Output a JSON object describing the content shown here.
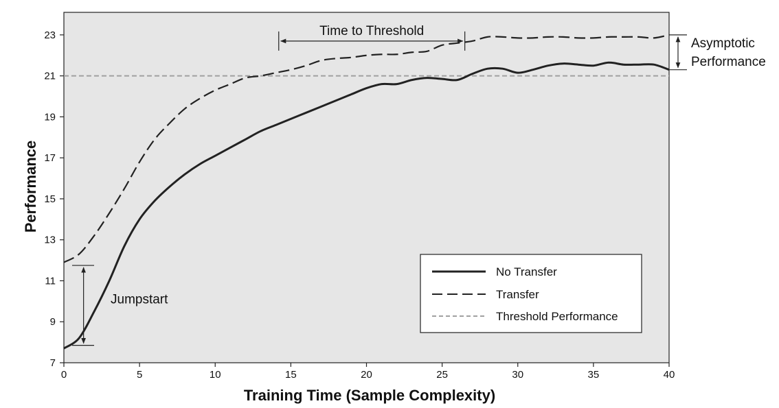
{
  "chart_data": {
    "type": "line",
    "title": "",
    "xlabel": "Training Time (Sample Complexity)",
    "ylabel": "Performance",
    "xlim": [
      0,
      40
    ],
    "ylim": [
      7,
      24.1
    ],
    "x_ticks": [
      0,
      5,
      10,
      15,
      20,
      25,
      30,
      35,
      40
    ],
    "y_ticks": [
      7,
      9,
      11,
      13,
      15,
      17,
      19,
      21,
      23
    ],
    "grid": false,
    "plot_background": "#e6e6e6",
    "legend_position": "bottom-right",
    "series": [
      {
        "name": "No Transfer",
        "style": "solid",
        "color": "#222222",
        "x": [
          0,
          1,
          2,
          3,
          4,
          5,
          6,
          7,
          8,
          9,
          10,
          11,
          12,
          13,
          14,
          15,
          16,
          17,
          18,
          19,
          20,
          21,
          22,
          23,
          24,
          25,
          26,
          27,
          28,
          29,
          30,
          31,
          32,
          33,
          34,
          35,
          36,
          37,
          38,
          39,
          40
        ],
        "y": [
          7.7,
          8.2,
          9.5,
          11.0,
          12.7,
          14.0,
          14.9,
          15.6,
          16.2,
          16.7,
          17.1,
          17.5,
          17.9,
          18.3,
          18.6,
          18.9,
          19.2,
          19.5,
          19.8,
          20.1,
          20.4,
          20.6,
          20.6,
          20.8,
          20.9,
          20.85,
          20.8,
          21.1,
          21.35,
          21.35,
          21.15,
          21.3,
          21.5,
          21.6,
          21.55,
          21.5,
          21.65,
          21.55,
          21.55,
          21.55,
          21.3
        ]
      },
      {
        "name": "Transfer",
        "style": "dashed",
        "color": "#222222",
        "x": [
          0,
          1,
          2,
          3,
          4,
          5,
          6,
          7,
          8,
          9,
          10,
          11,
          12,
          13,
          14,
          15,
          16,
          17,
          18,
          19,
          20,
          21,
          22,
          23,
          24,
          25,
          26,
          27,
          28,
          29,
          30,
          31,
          32,
          33,
          34,
          35,
          36,
          37,
          38,
          39,
          40
        ],
        "y": [
          11.9,
          12.3,
          13.2,
          14.3,
          15.5,
          16.8,
          17.9,
          18.7,
          19.4,
          19.9,
          20.3,
          20.6,
          20.9,
          21.0,
          21.15,
          21.3,
          21.5,
          21.75,
          21.85,
          21.9,
          22.0,
          22.05,
          22.05,
          22.15,
          22.2,
          22.5,
          22.6,
          22.7,
          22.9,
          22.9,
          22.85,
          22.85,
          22.9,
          22.9,
          22.85,
          22.85,
          22.9,
          22.9,
          22.9,
          22.85,
          23.0
        ]
      },
      {
        "name": "Threshold Performance",
        "style": "dotted-gray",
        "color": "#a0a0a0",
        "x": [
          0,
          40
        ],
        "y": [
          21,
          21
        ]
      }
    ],
    "annotations": {
      "time_to_threshold": {
        "label": "Time to Threshold",
        "x_start": 14.2,
        "x_end": 26.5,
        "y": 23
      },
      "asymptotic": {
        "label_line1": "Asymptotic",
        "label_line2": "Performance",
        "y_top": 23.0,
        "y_bottom": 21.3
      },
      "jumpstart": {
        "label": "Jumpstart",
        "x": 1.3,
        "y_top": 11.75,
        "y_bottom": 7.85
      }
    }
  }
}
